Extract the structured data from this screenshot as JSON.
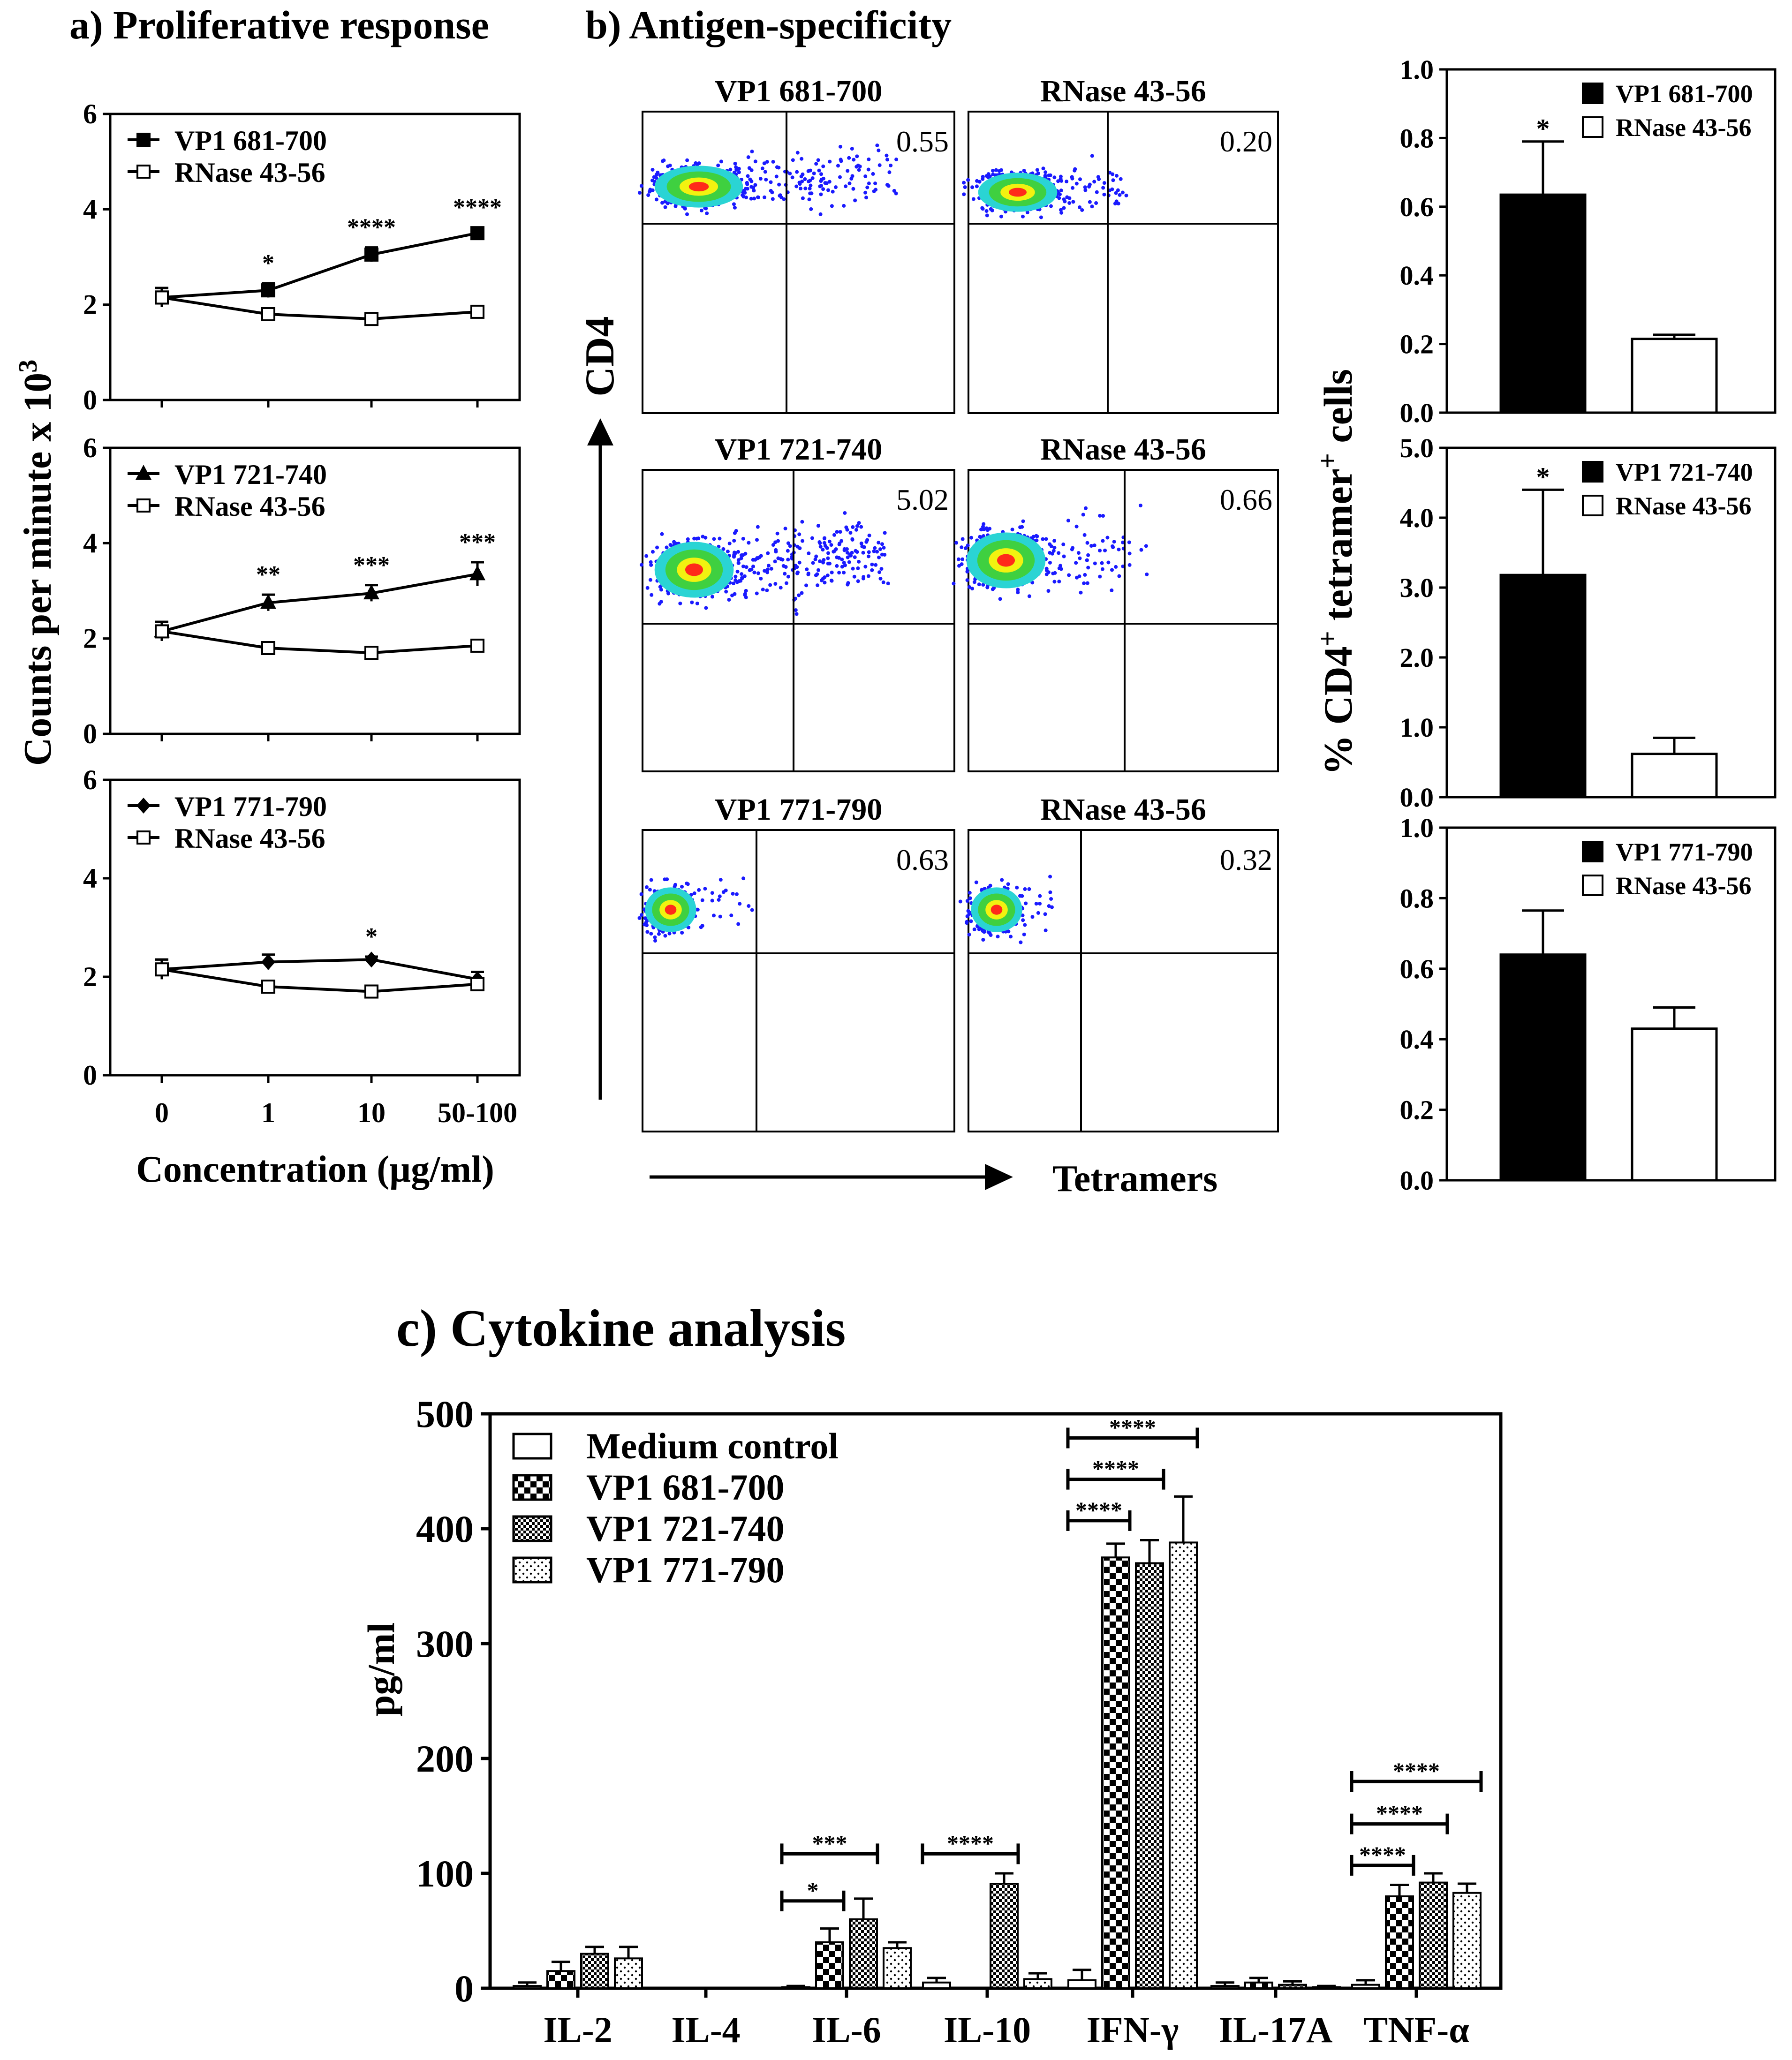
{
  "panel_a": {
    "heading": "a) Proliferative response",
    "ylabel": "Counts per minute x 10",
    "ylabel_sup": "3",
    "xlabel": "Concentration (µg/ml)",
    "xticks": [
      "0",
      "1",
      "10",
      "50-100"
    ],
    "yticks": [
      "0",
      "2",
      "4",
      "6"
    ]
  },
  "panel_b": {
    "heading": "b) Antigen-specificity",
    "y_axis_label": "CD4",
    "x_axis_label": "Tetramers",
    "bar_ylabel_pre": "% CD4",
    "bar_ylabel_sup1": "+",
    "bar_ylabel_mid": " tetramer",
    "bar_ylabel_sup2": "+",
    "bar_ylabel_post": " cells"
  },
  "panel_c": {
    "heading": "c) Cytokine analysis",
    "ylabel": "pg/ml"
  },
  "colors": {
    "black": "#000000",
    "white": "#ffffff",
    "flow_blue": "#1a1aff",
    "flow_cyan": "#2ad4d4",
    "flow_green": "#3fd040",
    "flow_yellow": "#f2f210",
    "flow_red": "#ff2a1a"
  },
  "chart_data": [
    {
      "type": "line",
      "id": "a1",
      "x": [
        "0",
        "1",
        "10",
        "50-100"
      ],
      "ylim": [
        0,
        6
      ],
      "series": [
        {
          "name": "VP1 681-700",
          "marker": "filled-square",
          "values": [
            2.15,
            2.3,
            3.05,
            3.5
          ],
          "errors": [
            0.2,
            0.15,
            0.15,
            0.12
          ]
        },
        {
          "name": "RNase 43-56",
          "marker": "open-square",
          "values": [
            2.15,
            1.8,
            1.7,
            1.85
          ],
          "errors": [
            0.2,
            0.08,
            0.08,
            0.08
          ]
        }
      ],
      "annotations": [
        {
          "x": "1",
          "text": "*"
        },
        {
          "x": "10",
          "text": "****"
        },
        {
          "x": "50-100",
          "text": "****"
        }
      ]
    },
    {
      "type": "line",
      "id": "a2",
      "x": [
        "0",
        "1",
        "10",
        "50-100"
      ],
      "ylim": [
        0,
        6
      ],
      "series": [
        {
          "name": "VP1 721-740",
          "marker": "filled-triangle",
          "values": [
            2.15,
            2.75,
            2.95,
            3.35
          ],
          "errors": [
            0.2,
            0.17,
            0.17,
            0.25
          ]
        },
        {
          "name": "RNase 43-56",
          "marker": "open-square",
          "values": [
            2.15,
            1.8,
            1.7,
            1.85
          ],
          "errors": [
            0.2,
            0.08,
            0.08,
            0.08
          ]
        }
      ],
      "annotations": [
        {
          "x": "1",
          "text": "**"
        },
        {
          "x": "10",
          "text": "***"
        },
        {
          "x": "50-100",
          "text": "***"
        }
      ]
    },
    {
      "type": "line",
      "id": "a3",
      "x": [
        "0",
        "1",
        "10",
        "50-100"
      ],
      "ylim": [
        0,
        6
      ],
      "series": [
        {
          "name": "VP1 771-790",
          "marker": "filled-diamond",
          "values": [
            2.15,
            2.3,
            2.35,
            1.95
          ],
          "errors": [
            0.2,
            0.15,
            0.06,
            0.15
          ]
        },
        {
          "name": "RNase 43-56",
          "marker": "open-square",
          "values": [
            2.15,
            1.8,
            1.7,
            1.85
          ],
          "errors": [
            0.2,
            0.08,
            0.08,
            0.08
          ]
        }
      ],
      "annotations": [
        {
          "x": "10",
          "text": "*"
        }
      ]
    },
    {
      "type": "scatter",
      "id": "b-flow",
      "plots": [
        {
          "title": "VP1 681-700",
          "value": "0.55"
        },
        {
          "title": "RNase 43-56",
          "value": "0.20"
        },
        {
          "title": "VP1 721-740",
          "value": "5.02"
        },
        {
          "title": "RNase 43-56",
          "value": "0.66"
        },
        {
          "title": "VP1 771-790",
          "value": "0.63"
        },
        {
          "title": "RNase 43-56",
          "value": "0.32"
        }
      ]
    },
    {
      "type": "bar",
      "id": "b1",
      "categories": [
        "VP1 681-700",
        "RNase 43-56"
      ],
      "values": [
        0.635,
        0.215
      ],
      "errors": [
        0.155,
        0.012
      ],
      "ylim": [
        0,
        1.0
      ],
      "yticks": [
        "0.0",
        "0.2",
        "0.4",
        "0.6",
        "0.8",
        "1.0"
      ],
      "annotations": [
        {
          "bar": 0,
          "text": "*"
        }
      ]
    },
    {
      "type": "bar",
      "id": "b2",
      "categories": [
        "VP1 721-740",
        "RNase 43-56"
      ],
      "values": [
        3.18,
        0.62
      ],
      "errors": [
        1.22,
        0.23
      ],
      "ylim": [
        0,
        5.0
      ],
      "yticks": [
        "0.0",
        "1.0",
        "2.0",
        "3.0",
        "4.0",
        "5.0"
      ],
      "annotations": [
        {
          "bar": 0,
          "text": "*"
        }
      ]
    },
    {
      "type": "bar",
      "id": "b3",
      "categories": [
        "VP1 771-790",
        "RNase 43-56"
      ],
      "values": [
        0.64,
        0.43
      ],
      "errors": [
        0.125,
        0.06
      ],
      "ylim": [
        0,
        1.0
      ],
      "yticks": [
        "0.0",
        "0.2",
        "0.4",
        "0.6",
        "0.8",
        "1.0"
      ],
      "annotations": []
    },
    {
      "type": "bar",
      "id": "c",
      "title": "c) Cytokine analysis",
      "ylabel": "pg/ml",
      "ylim": [
        0,
        500
      ],
      "yticks": [
        "0",
        "100",
        "200",
        "300",
        "400",
        "500"
      ],
      "categories": [
        "IL-2",
        "IL-4",
        "IL-6",
        "IL-10",
        "IFN-γ",
        "IL-17A",
        "TNF-α"
      ],
      "series": [
        {
          "name": "Medium control",
          "pattern": "white",
          "values": [
            2,
            0,
            1,
            5,
            7,
            2,
            3
          ],
          "errors": [
            3,
            0,
            1,
            4,
            9,
            3,
            4
          ]
        },
        {
          "name": "VP1 681-700",
          "pattern": "checker",
          "values": [
            15,
            0,
            40,
            0,
            375,
            5,
            80
          ],
          "errors": [
            8,
            0,
            12,
            0,
            12,
            4,
            10
          ]
        },
        {
          "name": "VP1 721-740",
          "pattern": "dense-hatch",
          "values": [
            30,
            0,
            60,
            91,
            370,
            3,
            92
          ],
          "errors": [
            6,
            0,
            18,
            9,
            20,
            3,
            8
          ]
        },
        {
          "name": "VP1 771-790",
          "pattern": "dots",
          "values": [
            26,
            0,
            35,
            8,
            388,
            1,
            83
          ],
          "errors": [
            10,
            0,
            5,
            5,
            40,
            1,
            8
          ]
        }
      ],
      "significance": [
        {
          "category": "IL-6",
          "from": 0,
          "to": 1,
          "text": "*",
          "level": 76
        },
        {
          "category": "IL-6",
          "from": 0,
          "to": 2,
          "text": "***",
          "level": 117
        },
        {
          "category": "IL-10",
          "from": 0,
          "to": 2,
          "text": "****",
          "level": 117
        },
        {
          "category": "IFN-γ",
          "from": 0,
          "to": 1,
          "text": "****",
          "level": 407
        },
        {
          "category": "IFN-γ",
          "from": 0,
          "to": 2,
          "text": "****",
          "level": 443
        },
        {
          "category": "IFN-γ",
          "from": 0,
          "to": 3,
          "text": "****",
          "level": 479
        },
        {
          "category": "TNF-α",
          "from": 0,
          "to": 1,
          "text": "****",
          "level": 107
        },
        {
          "category": "TNF-α",
          "from": 0,
          "to": 2,
          "text": "****",
          "level": 143
        },
        {
          "category": "TNF-α",
          "from": 0,
          "to": 3,
          "text": "****",
          "level": 180
        }
      ]
    }
  ]
}
